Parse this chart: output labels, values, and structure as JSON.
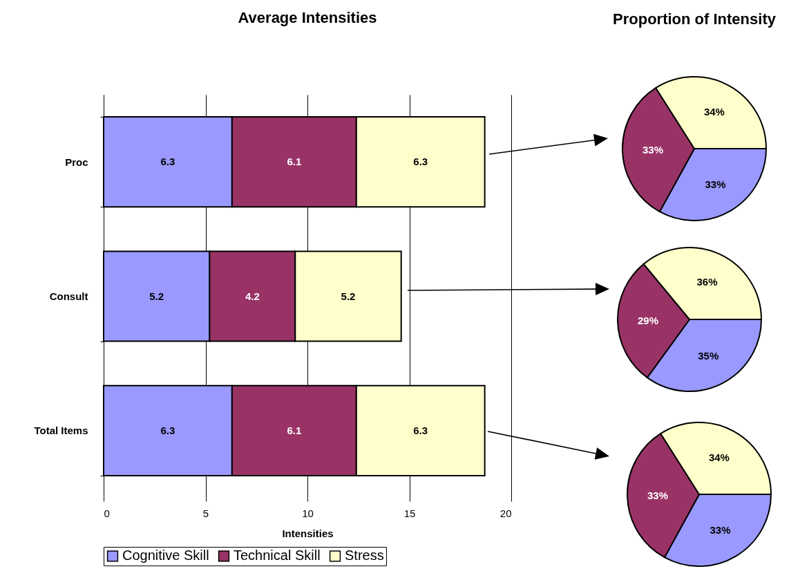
{
  "chart_data": [
    {
      "type": "bar",
      "title": "Average Intensities",
      "orientation": "horizontal",
      "stacked": true,
      "categories": [
        "Proc",
        "Consult",
        "Total Items"
      ],
      "series": [
        {
          "name": "Cognitive Skill",
          "color": "#9999ff",
          "values": [
            6.3,
            5.2,
            6.3
          ]
        },
        {
          "name": "Technical Skill",
          "color": "#993366",
          "values": [
            6.1,
            4.2,
            6.1
          ]
        },
        {
          "name": "Stress",
          "color": "#ffffcc",
          "values": [
            6.3,
            5.2,
            6.3
          ]
        }
      ],
      "xlim": [
        0,
        20
      ],
      "xticks": [
        0,
        5,
        10,
        15,
        20
      ],
      "xlabel": "Intensities",
      "grid": "x",
      "legend": "bottom",
      "data_labels": true
    },
    {
      "type": "pie",
      "title": "Proportion of Intensity",
      "categories": [
        null,
        null,
        null
      ],
      "values": [
        33,
        33,
        34
      ],
      "colors": [
        "#9999ff",
        "#993366",
        "#ffffcc"
      ],
      "value_labels": [
        "33%",
        "33%",
        "34%"
      ]
    },
    {
      "type": "pie",
      "categories": [
        null,
        null,
        null
      ],
      "values": [
        35,
        29,
        36
      ],
      "colors": [
        "#9999ff",
        "#993366",
        "#ffffcc"
      ],
      "value_labels": [
        "35%",
        "29%",
        "36%"
      ]
    },
    {
      "type": "pie",
      "categories": [
        null,
        null,
        null
      ],
      "values": [
        33,
        33,
        34
      ],
      "colors": [
        "#9999ff",
        "#993366",
        "#ffffcc"
      ],
      "value_labels": [
        "33%",
        "33%",
        "34%"
      ]
    }
  ]
}
